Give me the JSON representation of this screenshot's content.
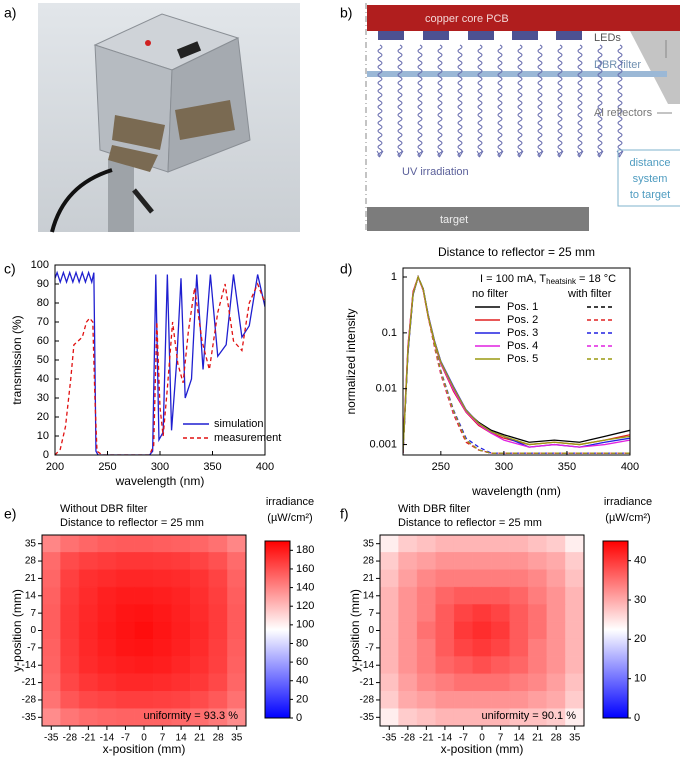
{
  "panel_labels": [
    "a)",
    "b)",
    "c)",
    "d)",
    "e)",
    "f)"
  ],
  "diagram": {
    "pcb": "copper core PCB",
    "leds": "LEDs",
    "dbr": "DBR filter",
    "reflectors": "Al reflectors",
    "uv": "UV irradiation",
    "distance": [
      "distance",
      "system",
      "to target"
    ],
    "target": "target"
  },
  "chart_data": [
    {
      "type": "line",
      "xlabel": "wavelength (nm)",
      "ylabel": "transmission (%)",
      "xlim": [
        200,
        400
      ],
      "xticks": [
        200,
        250,
        300,
        350,
        400
      ],
      "ylim": [
        0,
        100
      ],
      "yticks": [
        0,
        10,
        20,
        30,
        40,
        50,
        60,
        70,
        80,
        90,
        100
      ],
      "legend": "lower right",
      "series": [
        {
          "name": "simulation",
          "color": "#1f1fd0",
          "style": "solid",
          "x": [
            200,
            202,
            205,
            208,
            211,
            214,
            217,
            220,
            223,
            226,
            229,
            232,
            235,
            237,
            238,
            239,
            241,
            250,
            270,
            290,
            293,
            296,
            299,
            303,
            307,
            311,
            316,
            320,
            324,
            330,
            335,
            341,
            348,
            355,
            363,
            370,
            378,
            385,
            393,
            400
          ],
          "values": [
            93,
            96,
            91,
            96,
            91,
            96,
            91,
            96,
            91,
            96,
            91,
            96,
            91,
            96,
            50,
            2,
            0,
            0,
            0,
            0,
            2,
            95,
            8,
            12,
            95,
            13,
            50,
            93,
            30,
            40,
            95,
            45,
            95,
            52,
            58,
            95,
            62,
            68,
            95,
            78
          ]
        },
        {
          "name": "measurement",
          "color": "#e01010",
          "style": "dashed",
          "x": [
            200,
            205,
            210,
            215,
            218,
            222,
            226,
            230,
            233,
            236,
            238,
            240,
            245,
            290,
            294,
            297,
            300,
            303,
            307,
            312,
            317,
            322,
            327,
            333,
            340,
            347,
            355,
            362,
            370,
            378,
            385,
            393,
            400
          ],
          "values": [
            0,
            3,
            15,
            40,
            58,
            60,
            62,
            70,
            72,
            70,
            30,
            2,
            0,
            0,
            5,
            70,
            25,
            10,
            35,
            70,
            48,
            38,
            65,
            88,
            60,
            45,
            75,
            90,
            60,
            55,
            80,
            90,
            80
          ]
        }
      ]
    },
    {
      "type": "line",
      "title": "Distance to reflector = 25 mm",
      "xlabel": "wavelength (nm)",
      "ylabel": "normalized intensity",
      "annotation": {
        "prefix": "I = 100 mA, T",
        "sub": "heatsink",
        "suffix": " = 18 °C"
      },
      "legend_headers": [
        "no filter",
        "with filter"
      ],
      "legend": "upper right",
      "ylog": true,
      "xlim": [
        220,
        400
      ],
      "xticks": [
        250,
        300,
        350,
        400
      ],
      "ylim": [
        0.00065,
        1.45
      ],
      "yticks": [
        0.001,
        0.01,
        0.1,
        1
      ],
      "x": [
        220,
        224,
        228,
        232,
        236,
        240,
        245,
        250,
        260,
        270,
        280,
        290,
        300,
        320,
        340,
        360,
        380,
        400
      ],
      "series": [
        {
          "name": "Pos. 1",
          "color": "#000000",
          "values": [
            0.0008,
            0.05,
            0.5,
            1,
            0.6,
            0.2,
            0.07,
            0.03,
            0.01,
            0.004,
            0.0025,
            0.0018,
            0.0015,
            0.0011,
            0.0012,
            0.0011,
            0.0014,
            0.0018
          ],
          "filter_values": [
            0.0007,
            0.05,
            0.5,
            1,
            0.6,
            0.2,
            0.06,
            0.02,
            0.004,
            0.0012,
            0.0008,
            0.0007,
            0.0007,
            0.0007,
            0.0007,
            0.0007,
            0.0007,
            0.0007
          ]
        },
        {
          "name": "Pos. 2",
          "color": "#e02020",
          "values": [
            0.0009,
            0.06,
            0.55,
            1,
            0.58,
            0.19,
            0.065,
            0.028,
            0.009,
            0.0038,
            0.0022,
            0.0016,
            0.0013,
            0.001,
            0.0011,
            0.001,
            0.0012,
            0.0015
          ],
          "filter_values": [
            0.0007,
            0.06,
            0.55,
            1,
            0.58,
            0.19,
            0.055,
            0.018,
            0.0035,
            0.0011,
            0.0008,
            0.0007,
            0.0007,
            0.0007,
            0.0007,
            0.0007,
            0.0007,
            0.0007
          ]
        },
        {
          "name": "Pos. 3",
          "color": "#2020e0",
          "values": [
            0.0008,
            0.045,
            0.48,
            1,
            0.62,
            0.21,
            0.072,
            0.031,
            0.011,
            0.0042,
            0.0024,
            0.0017,
            0.0014,
            0.0009,
            0.001,
            0.0009,
            0.0011,
            0.0013
          ],
          "filter_values": [
            0.0007,
            0.045,
            0.48,
            1,
            0.62,
            0.21,
            0.062,
            0.021,
            0.0042,
            0.0013,
            0.0009,
            0.0007,
            0.0007,
            0.0007,
            0.0007,
            0.0007,
            0.0007,
            0.0007
          ]
        },
        {
          "name": "Pos. 4",
          "color": "#e020e0",
          "values": [
            0.0009,
            0.055,
            0.52,
            1,
            0.59,
            0.2,
            0.068,
            0.029,
            0.0095,
            0.0039,
            0.0023,
            0.0016,
            0.0012,
            0.0009,
            0.001,
            0.0009,
            0.001,
            0.0012
          ],
          "filter_values": [
            0.0007,
            0.055,
            0.52,
            1,
            0.59,
            0.2,
            0.058,
            0.019,
            0.0038,
            0.0012,
            0.0008,
            0.0007,
            0.0007,
            0.0007,
            0.0007,
            0.0007,
            0.0007,
            0.0007
          ]
        },
        {
          "name": "Pos. 5",
          "color": "#9a9a10",
          "values": [
            0.0008,
            0.05,
            0.5,
            1,
            0.61,
            0.2,
            0.07,
            0.03,
            0.0105,
            0.0041,
            0.0024,
            0.0017,
            0.0014,
            0.001,
            0.0011,
            0.001,
            0.0012,
            0.0014
          ],
          "filter_values": [
            0.0007,
            0.05,
            0.5,
            1,
            0.61,
            0.2,
            0.06,
            0.02,
            0.004,
            0.0012,
            0.0008,
            0.0007,
            0.0007,
            0.0007,
            0.0007,
            0.0007,
            0.0007,
            0.0007
          ]
        }
      ]
    },
    {
      "type": "heatmap",
      "title": [
        "Without DBR filter",
        "Distance to reflector = 25 mm"
      ],
      "annotation": "uniformity = 93.3 %",
      "xlabel": "x-position (mm)",
      "ylabel": "y-position (mm)",
      "colorbar_label": [
        "irradiance",
        "(µW/cm²)"
      ],
      "colormap": [
        "#0000ff",
        "#ffffff",
        "#ff0000"
      ],
      "clim": [
        0,
        190
      ],
      "cticks": [
        0,
        20,
        40,
        60,
        80,
        100,
        120,
        140,
        160,
        180
      ],
      "xlim": [
        -38.5,
        38.5
      ],
      "ylim": [
        -38.5,
        38.5
      ],
      "xticks": [
        -35,
        -28,
        -21,
        -14,
        -7,
        0,
        7,
        14,
        21,
        28,
        35
      ],
      "yticks": [
        -35,
        -28,
        -21,
        -14,
        -7,
        0,
        7,
        14,
        21,
        28,
        35
      ],
      "x": [
        -35,
        -28,
        -21,
        -14,
        -7,
        0,
        7,
        14,
        21,
        28,
        35
      ],
      "y": [
        35,
        28,
        21,
        14,
        7,
        0,
        -7,
        -14,
        -21,
        -28,
        -35
      ],
      "values": [
        [
          140,
          148,
          152,
          155,
          156,
          156,
          155,
          154,
          152,
          148,
          140
        ],
        [
          150,
          162,
          166,
          168,
          170,
          170,
          169,
          168,
          165,
          160,
          150
        ],
        [
          152,
          166,
          172,
          174,
          176,
          176,
          175,
          174,
          171,
          165,
          153
        ],
        [
          154,
          168,
          174,
          178,
          180,
          180,
          179,
          177,
          173,
          167,
          155
        ],
        [
          155,
          169,
          175,
          179,
          182,
          183,
          181,
          178,
          174,
          168,
          156
        ],
        [
          155,
          169,
          176,
          180,
          183,
          185,
          182,
          179,
          175,
          168,
          156
        ],
        [
          154,
          168,
          175,
          179,
          182,
          183,
          181,
          178,
          174,
          167,
          155
        ],
        [
          153,
          167,
          174,
          177,
          179,
          180,
          179,
          176,
          172,
          166,
          154
        ],
        [
          151,
          164,
          170,
          173,
          175,
          175,
          174,
          172,
          169,
          163,
          152
        ],
        [
          147,
          158,
          163,
          165,
          167,
          167,
          166,
          165,
          162,
          157,
          148
        ],
        [
          138,
          146,
          150,
          152,
          153,
          153,
          153,
          151,
          149,
          145,
          138
        ]
      ]
    },
    {
      "type": "heatmap",
      "title": [
        "With DBR filter",
        "Distance to reflector = 25 mm"
      ],
      "annotation": "uniformity = 90.1 %",
      "xlabel": "x-position (mm)",
      "ylabel": "y-position (mm)",
      "colorbar_label": [
        "irradiance",
        "(µW/cm²)"
      ],
      "colormap": [
        "#0000ff",
        "#ffffff",
        "#ff0000"
      ],
      "clim": [
        0,
        45
      ],
      "cticks": [
        0,
        10,
        20,
        30,
        40
      ],
      "xlim": [
        -38.5,
        38.5
      ],
      "ylim": [
        -38.5,
        38.5
      ],
      "xticks": [
        -35,
        -28,
        -21,
        -14,
        -7,
        0,
        7,
        14,
        21,
        28,
        35
      ],
      "yticks": [
        -35,
        -28,
        -21,
        -14,
        -7,
        0,
        7,
        14,
        21,
        28,
        35
      ],
      "x": [
        -35,
        -28,
        -21,
        -14,
        -7,
        0,
        7,
        14,
        21,
        28,
        35
      ],
      "y": [
        35,
        28,
        21,
        14,
        7,
        0,
        -7,
        -14,
        -21,
        -28,
        -35
      ],
      "values": [
        [
          24,
          27,
          28,
          29,
          29,
          29,
          29,
          29,
          28,
          27,
          24
        ],
        [
          27,
          30,
          31,
          32,
          32,
          32,
          32,
          32,
          31,
          30,
          27
        ],
        [
          28,
          31,
          33,
          34,
          34,
          34,
          34,
          34,
          33,
          31,
          28
        ],
        [
          29,
          32,
          34,
          36,
          37,
          37,
          37,
          36,
          34,
          32,
          29
        ],
        [
          29,
          32,
          34,
          37,
          39,
          40,
          39,
          37,
          35,
          32,
          29
        ],
        [
          29,
          32,
          35,
          37,
          40,
          41,
          40,
          37,
          35,
          32,
          29
        ],
        [
          29,
          32,
          34,
          37,
          39,
          40,
          39,
          37,
          34,
          32,
          29
        ],
        [
          29,
          32,
          34,
          36,
          37,
          38,
          37,
          36,
          34,
          32,
          29
        ],
        [
          28,
          31,
          33,
          34,
          35,
          35,
          35,
          34,
          33,
          31,
          28
        ],
        [
          27,
          30,
          31,
          32,
          32,
          32,
          32,
          32,
          31,
          30,
          27
        ],
        [
          24,
          27,
          28,
          29,
          29,
          29,
          29,
          28,
          28,
          27,
          24
        ]
      ]
    }
  ]
}
